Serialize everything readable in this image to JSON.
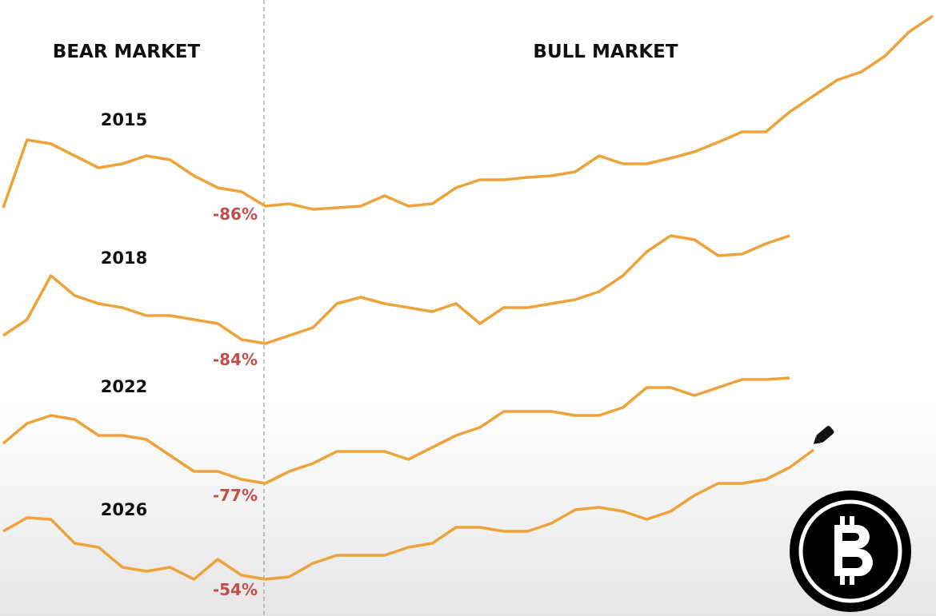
{
  "header": {
    "left": "BEAR MARKET",
    "right": "BULL MARKET"
  },
  "chart_data": {
    "type": "line",
    "color": "#eea23a",
    "xlim": [
      0,
      39
    ],
    "ylim": [
      0,
      771
    ],
    "x": [
      0,
      1,
      2,
      3,
      4,
      5,
      6,
      7,
      8,
      9,
      10,
      11,
      12,
      13,
      14,
      15,
      16,
      17,
      18,
      19,
      20,
      21,
      22,
      23,
      24,
      25,
      26,
      27,
      28,
      29,
      30,
      31,
      32,
      33,
      34,
      35,
      36,
      37,
      38,
      39
    ],
    "series": [
      {
        "name": "2015",
        "annotation": "-86%",
        "values": [
          511,
          596,
          591,
          576,
          561,
          566,
          576,
          571,
          551,
          536,
          531,
          513,
          516,
          509,
          511,
          513,
          526,
          513,
          516,
          536,
          546,
          546,
          549,
          551,
          556,
          576,
          566,
          566,
          573,
          581,
          593,
          606,
          606,
          631,
          651,
          671,
          681,
          701,
          731,
          751
        ]
      },
      {
        "name": "2018",
        "annotation": "-84%",
        "values": [
          351,
          371,
          426,
          401,
          391,
          386,
          376,
          376,
          371,
          366,
          346,
          341,
          351,
          361,
          391,
          399,
          391,
          386,
          381,
          391,
          366,
          386,
          386,
          391,
          396,
          406,
          426,
          456,
          476,
          471,
          451,
          453,
          466,
          476,
          null,
          null,
          null,
          null,
          null,
          null
        ]
      },
      {
        "name": "2022",
        "annotation": "-77%",
        "values": [
          216,
          241,
          251,
          246,
          226,
          226,
          221,
          201,
          181,
          181,
          171,
          166,
          181,
          191,
          206,
          206,
          206,
          196,
          211,
          226,
          236,
          256,
          256,
          256,
          251,
          251,
          261,
          286,
          286,
          276,
          286,
          296,
          296,
          298,
          null,
          null,
          null,
          null,
          null,
          null
        ]
      },
      {
        "name": "2026",
        "annotation": "-54%",
        "values": [
          106,
          123,
          121,
          91,
          86,
          61,
          56,
          61,
          46,
          71,
          51,
          46,
          49,
          66,
          76,
          76,
          76,
          86,
          91,
          111,
          111,
          106,
          106,
          116,
          133,
          136,
          131,
          121,
          131,
          151,
          166,
          166,
          171,
          186,
          208,
          null,
          null,
          null,
          null,
          null
        ]
      }
    ]
  }
}
